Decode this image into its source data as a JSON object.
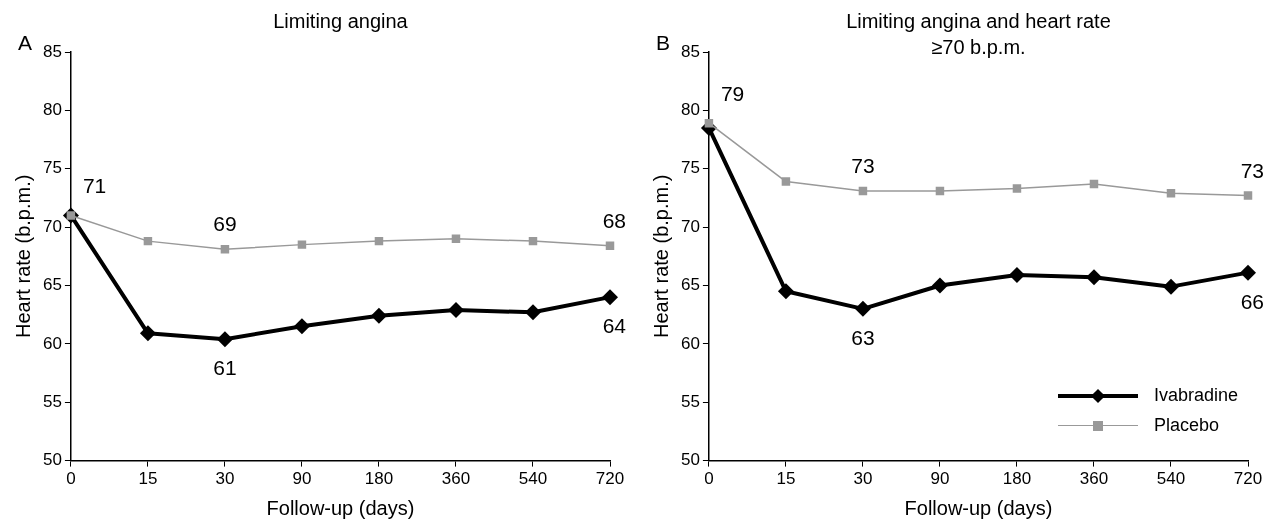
{
  "chart_data": [
    {
      "type": "line",
      "title": "Limiting angina",
      "xlabel": "Follow-up (days)",
      "ylabel": "Heart rate (b.p.m.)",
      "categories": [
        "0",
        "15",
        "30",
        "90",
        "180",
        "360",
        "540",
        "720"
      ],
      "series": [
        {
          "color": "#000000",
          "marker": "diamond",
          "values": [
            71,
            60.9,
            60.4,
            61.5,
            62.4,
            62.9,
            62.7,
            64
          ]
        },
        {
          "color": "#999999",
          "marker": "square",
          "values": [
            71,
            68.8,
            68.1,
            68.5,
            68.8,
            69.0,
            68.8,
            68.4
          ]
        }
      ],
      "ylim": [
        50,
        85
      ],
      "yticks": [
        50,
        55,
        60,
        65,
        70,
        75,
        80,
        85
      ],
      "grid": false,
      "legend": false,
      "annotations": [
        "A",
        {
          "text": "71",
          "x": "0",
          "y": 71
        },
        {
          "text": "69",
          "x": "30",
          "y": 68.1
        },
        {
          "text": "68",
          "x": "720",
          "y": 68.4
        },
        {
          "text": "61",
          "x": "30",
          "y": 60.4
        },
        {
          "text": "64",
          "x": "720",
          "y": 64
        }
      ]
    },
    {
      "type": "line",
      "title": "Limiting angina and heart rate ≥70 b.p.m.",
      "xlabel": "Follow-up (days)",
      "ylabel": "Heart rate (b.p.m.)",
      "categories": [
        "0",
        "15",
        "30",
        "90",
        "180",
        "360",
        "540",
        "720"
      ],
      "series": [
        {
          "name": "Ivabradine",
          "color": "#000000",
          "marker": "diamond",
          "values": [
            78.5,
            64.5,
            63,
            65,
            65.9,
            65.7,
            64.9,
            66.1
          ]
        },
        {
          "name": "Placebo",
          "color": "#999999",
          "marker": "square",
          "values": [
            78.9,
            73.9,
            73.1,
            73.1,
            73.3,
            73.7,
            72.9,
            72.7
          ]
        }
      ],
      "ylim": [
        50,
        85
      ],
      "yticks": [
        50,
        55,
        60,
        65,
        70,
        75,
        80,
        85
      ],
      "grid": false,
      "legend": "bottom right",
      "annotations": [
        "B",
        {
          "text": "79",
          "x": "0",
          "y": 78.9
        },
        {
          "text": "73",
          "x": "30",
          "y": 73.1
        },
        {
          "text": "73",
          "x": "720",
          "y": 72.7
        },
        {
          "text": "63",
          "x": "30",
          "y": 63
        },
        {
          "text": "66",
          "x": "720",
          "y": 66.1
        }
      ]
    }
  ]
}
